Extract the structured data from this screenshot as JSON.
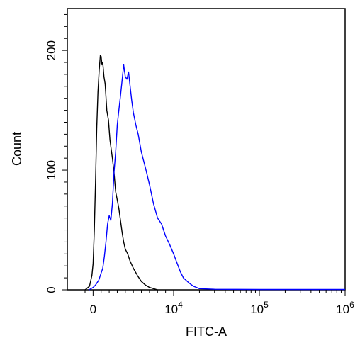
{
  "chart_data": {
    "type": "line",
    "xlabel": "FITC-A",
    "ylabel": "Count",
    "x_scale": "biexponential",
    "x_ticks": [
      {
        "value": 0,
        "base": "0",
        "exp": ""
      },
      {
        "value": 10000,
        "base": "10",
        "exp": "4"
      },
      {
        "value": 100000,
        "base": "10",
        "exp": "5"
      },
      {
        "value": 1000000,
        "base": "10",
        "exp": "6"
      }
    ],
    "y_ticks": [
      {
        "value": 0,
        "label": "0"
      },
      {
        "value": 100,
        "label": "100"
      },
      {
        "value": 200,
        "label": "200"
      }
    ],
    "ylim": [
      0,
      235
    ],
    "grid": false,
    "series": [
      {
        "color": "#000000",
        "points": [
          [
            -1000,
            0
          ],
          [
            -450,
            3
          ],
          [
            -150,
            12
          ],
          [
            0,
            22
          ],
          [
            150,
            50
          ],
          [
            300,
            90
          ],
          [
            450,
            135
          ],
          [
            600,
            165
          ],
          [
            750,
            183
          ],
          [
            900,
            196
          ],
          [
            1000,
            195
          ],
          [
            1100,
            188
          ],
          [
            1200,
            190
          ],
          [
            1350,
            178
          ],
          [
            1500,
            172
          ],
          [
            1700,
            150
          ],
          [
            1900,
            142
          ],
          [
            2100,
            125
          ],
          [
            2400,
            110
          ],
          [
            2600,
            98
          ],
          [
            2800,
            82
          ],
          [
            3000,
            75
          ],
          [
            3200,
            68
          ],
          [
            3400,
            58
          ],
          [
            3600,
            48
          ],
          [
            3800,
            40
          ],
          [
            4000,
            34
          ],
          [
            4300,
            30
          ],
          [
            4600,
            24
          ],
          [
            5000,
            18
          ],
          [
            5500,
            12
          ],
          [
            6000,
            7
          ],
          [
            6500,
            4
          ],
          [
            7000,
            2
          ],
          [
            7500,
            1
          ],
          [
            8000,
            0
          ]
        ]
      },
      {
        "color": "#0000ff",
        "points": [
          [
            -500,
            0
          ],
          [
            0,
            2
          ],
          [
            300,
            4
          ],
          [
            700,
            8
          ],
          [
            1000,
            14
          ],
          [
            1200,
            18
          ],
          [
            1400,
            28
          ],
          [
            1600,
            40
          ],
          [
            1800,
            55
          ],
          [
            2000,
            62
          ],
          [
            2200,
            58
          ],
          [
            2400,
            72
          ],
          [
            2600,
            98
          ],
          [
            2800,
            115
          ],
          [
            3000,
            138
          ],
          [
            3200,
            150
          ],
          [
            3400,
            162
          ],
          [
            3600,
            175
          ],
          [
            3800,
            188
          ],
          [
            4000,
            178
          ],
          [
            4200,
            176
          ],
          [
            4400,
            182
          ],
          [
            4600,
            170
          ],
          [
            4800,
            158
          ],
          [
            5000,
            148
          ],
          [
            5300,
            138
          ],
          [
            5600,
            130
          ],
          [
            6000,
            115
          ],
          [
            6500,
            102
          ],
          [
            7000,
            88
          ],
          [
            7500,
            72
          ],
          [
            8000,
            60
          ],
          [
            8500,
            55
          ],
          [
            9000,
            45
          ],
          [
            9500,
            38
          ],
          [
            10000,
            30
          ],
          [
            11000,
            22
          ],
          [
            12000,
            15
          ],
          [
            13000,
            10
          ],
          [
            15000,
            6
          ],
          [
            17000,
            3
          ],
          [
            20000,
            1
          ],
          [
            30000,
            0.5
          ],
          [
            100000,
            0.3
          ],
          [
            1000000,
            0.3
          ]
        ]
      }
    ]
  }
}
